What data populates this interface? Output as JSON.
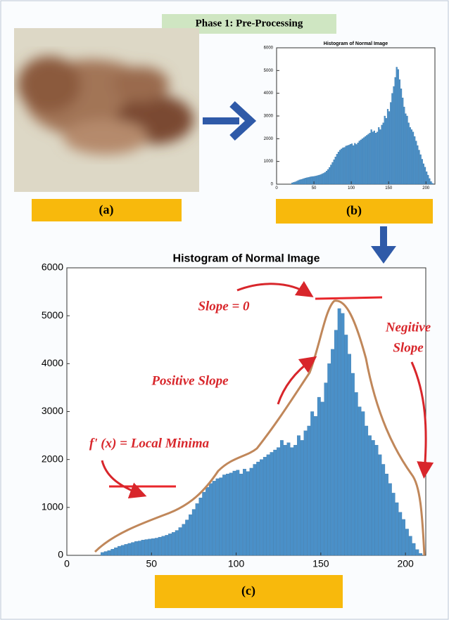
{
  "header": {
    "title": "Phase 1: Pre-Processing"
  },
  "panels": [
    "(a)",
    "(b)",
    "(c)"
  ],
  "annotations": {
    "slope_zero": "Slope = 0",
    "negative": [
      "Negitive",
      "Slope"
    ],
    "positive": "Positive Slope",
    "minima": "f' (x) = Local Minima"
  },
  "chart_data": [
    {
      "type": "histogram",
      "title": "Histogram of Normal Image",
      "color": "#4a90c8",
      "bins": [
        20,
        22,
        24,
        26,
        28,
        30,
        32,
        34,
        36,
        38,
        40,
        42,
        44,
        46,
        48,
        50,
        52,
        54,
        56,
        58,
        60,
        62,
        64,
        66,
        68,
        70,
        72,
        74,
        76,
        78,
        80,
        82,
        84,
        86,
        88,
        90,
        92,
        94,
        96,
        98,
        100,
        102,
        104,
        106,
        108,
        110,
        112,
        114,
        116,
        118,
        120,
        122,
        124,
        126,
        128,
        130,
        132,
        134,
        136,
        138,
        140,
        142,
        144,
        146,
        148,
        150,
        152,
        154,
        156,
        158,
        160,
        162,
        164,
        166,
        168,
        170,
        172,
        174,
        176,
        178,
        180,
        182,
        184,
        186,
        188,
        190,
        192,
        194,
        196,
        198,
        200,
        202,
        204,
        206,
        208,
        210
      ],
      "values": [
        60,
        80,
        100,
        130,
        160,
        190,
        210,
        230,
        250,
        270,
        290,
        300,
        320,
        330,
        340,
        350,
        360,
        380,
        400,
        420,
        450,
        480,
        520,
        580,
        650,
        740,
        850,
        960,
        1080,
        1200,
        1320,
        1420,
        1500,
        1550,
        1600,
        1620,
        1680,
        1700,
        1720,
        1760,
        1780,
        1700,
        1800,
        1750,
        1820,
        1900,
        1950,
        2000,
        2050,
        2100,
        2150,
        2200,
        2250,
        2400,
        2300,
        2350,
        2250,
        2300,
        2500,
        2400,
        2600,
        2700,
        3000,
        2900,
        3300,
        3200,
        3600,
        4000,
        4300,
        4700,
        5150,
        5050,
        4600,
        4200,
        3800,
        3400,
        3100,
        3000,
        2700,
        2500,
        2400,
        2300,
        2100,
        1900,
        1700,
        1500,
        1300,
        1100,
        900,
        750,
        550,
        400,
        250,
        120,
        40
      ],
      "xlim": [
        0,
        212
      ],
      "ylim": [
        0,
        6000
      ],
      "xticks": [
        0,
        50,
        100,
        150,
        200
      ],
      "yticks": [
        0,
        1000,
        2000,
        3000,
        4000,
        5000,
        6000
      ]
    },
    {
      "type": "histogram",
      "title": "Histogram of Normal Image",
      "color": "#4a90c8",
      "bins": [
        20,
        22,
        24,
        26,
        28,
        30,
        32,
        34,
        36,
        38,
        40,
        42,
        44,
        46,
        48,
        50,
        52,
        54,
        56,
        58,
        60,
        62,
        64,
        66,
        68,
        70,
        72,
        74,
        76,
        78,
        80,
        82,
        84,
        86,
        88,
        90,
        92,
        94,
        96,
        98,
        100,
        102,
        104,
        106,
        108,
        110,
        112,
        114,
        116,
        118,
        120,
        122,
        124,
        126,
        128,
        130,
        132,
        134,
        136,
        138,
        140,
        142,
        144,
        146,
        148,
        150,
        152,
        154,
        156,
        158,
        160,
        162,
        164,
        166,
        168,
        170,
        172,
        174,
        176,
        178,
        180,
        182,
        184,
        186,
        188,
        190,
        192,
        194,
        196,
        198,
        200,
        202,
        204,
        206,
        208,
        210
      ],
      "values": [
        60,
        80,
        100,
        130,
        160,
        190,
        210,
        230,
        250,
        270,
        290,
        300,
        320,
        330,
        340,
        350,
        360,
        380,
        400,
        420,
        450,
        480,
        520,
        580,
        650,
        740,
        850,
        960,
        1080,
        1200,
        1320,
        1420,
        1500,
        1550,
        1600,
        1620,
        1680,
        1700,
        1720,
        1760,
        1780,
        1700,
        1800,
        1750,
        1820,
        1900,
        1950,
        2000,
        2050,
        2100,
        2150,
        2200,
        2250,
        2400,
        2300,
        2350,
        2250,
        2300,
        2500,
        2400,
        2600,
        2700,
        3000,
        2900,
        3300,
        3200,
        3600,
        4000,
        4300,
        4700,
        5150,
        5050,
        4600,
        4200,
        3800,
        3400,
        3100,
        3000,
        2700,
        2500,
        2400,
        2300,
        2100,
        1900,
        1700,
        1500,
        1300,
        1100,
        900,
        750,
        550,
        400,
        250,
        120,
        40
      ],
      "xlim": [
        0,
        212
      ],
      "ylim": [
        0,
        6000
      ],
      "xticks": [
        0,
        50,
        100,
        150,
        200
      ],
      "yticks": [
        0,
        1000,
        2000,
        3000,
        4000,
        5000,
        6000
      ]
    }
  ]
}
